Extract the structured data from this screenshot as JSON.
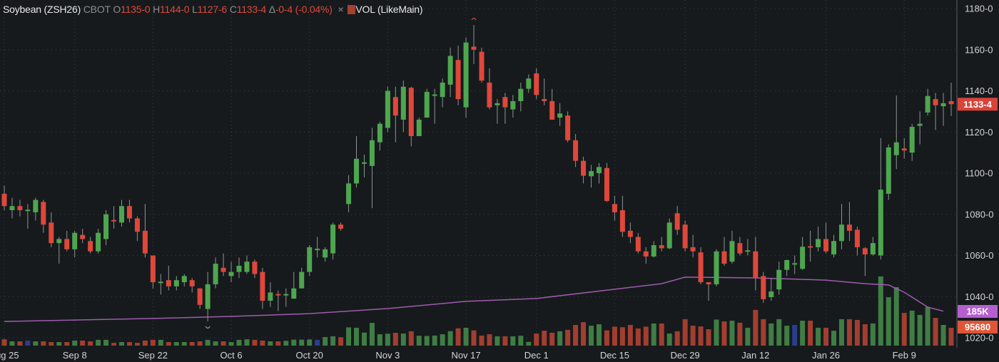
{
  "legend": {
    "name": "Soybean (ZSH26)",
    "exchange": "CBOT",
    "o_label": "O",
    "o_value": "1135-0",
    "h_label": "H",
    "h_value": "1144-0",
    "l_label": "L",
    "l_value": "1127-6",
    "c_label": "C",
    "c_value": "1133-4",
    "delta_label": "Δ",
    "delta_value": "-0-4 (-0.04%)",
    "close_icon": "×",
    "volume_label": "VOL (LikeMain)"
  },
  "price_tag": "1133-4",
  "line_tag": "185K",
  "volume_tag": "95680",
  "colors": {
    "up": "#4ea64f",
    "down": "#e0473b",
    "vol_up": "#3f7d45",
    "vol_down": "#a23e30",
    "vol_flat": "#2b3d8f",
    "line": "#a05bb0",
    "line_tag": "#b55fcf",
    "volume_tag": "#e05535",
    "price_tag": "#d8433a"
  },
  "chart_data": {
    "type": "candlestick",
    "title": "",
    "ylim": [
      1016,
      1183
    ],
    "y_ticks": [
      1180,
      1160,
      1140,
      1120,
      1100,
      1080,
      1060,
      1040,
      1020
    ],
    "y_tick_labels": [
      "1180-0",
      "1160-0",
      "1140-0",
      "1120-0",
      "1100-0",
      "1080-0",
      "1060-0",
      "1040-0",
      "1020-0"
    ],
    "x_tick_index": [
      0,
      9,
      19,
      29,
      39,
      49,
      59,
      68,
      78,
      87,
      96,
      105,
      115
    ],
    "x_tick_labels": [
      "Aug 25",
      "Sep 8",
      "Sep 22",
      "Oct 6",
      "Oct 20",
      "Nov 3",
      "Nov 17",
      "Dec 1",
      "Dec 15",
      "Dec 29",
      "Jan 12",
      "Jan 26",
      "Feb 9"
    ],
    "grid": true,
    "ohlc": [
      [
        1090,
        1094,
        1082,
        1084
      ],
      [
        1082,
        1088,
        1078,
        1084
      ],
      [
        1084,
        1087,
        1079,
        1082
      ],
      [
        1082,
        1085,
        1073,
        1082.25
      ],
      [
        1081,
        1088,
        1077,
        1087
      ],
      [
        1086,
        1087,
        1071,
        1075
      ],
      [
        1076,
        1081,
        1064,
        1066
      ],
      [
        1066,
        1069,
        1056,
        1068
      ],
      [
        1068,
        1072,
        1062,
        1063
      ],
      [
        1063,
        1072,
        1059,
        1071
      ],
      [
        1070,
        1073,
        1066,
        1068
      ],
      [
        1067,
        1069,
        1061,
        1062
      ],
      [
        1062,
        1073,
        1061,
        1071
      ],
      [
        1068,
        1082,
        1065,
        1080
      ],
      [
        1077.25,
        1084,
        1073,
        1077
      ],
      [
        1076,
        1087,
        1074,
        1084
      ],
      [
        1084,
        1087,
        1076,
        1078
      ],
      [
        1078,
        1079,
        1067,
        1071.5
      ],
      [
        1072,
        1085,
        1059,
        1061
      ],
      [
        1060,
        1060,
        1044,
        1047
      ],
      [
        1047,
        1051,
        1041,
        1047.25
      ],
      [
        1048,
        1055,
        1043,
        1045
      ],
      [
        1045,
        1050,
        1043,
        1048
      ],
      [
        1047,
        1051,
        1045,
        1050
      ],
      [
        1048,
        1049,
        1042,
        1045
      ],
      [
        1044,
        1044,
        1034,
        1036
      ],
      [
        1034,
        1052,
        1028,
        1046
      ],
      [
        1046,
        1059,
        1044,
        1056
      ],
      [
        1054,
        1061,
        1050,
        1052
      ],
      [
        1050,
        1057,
        1047,
        1052
      ],
      [
        1052,
        1059,
        1049,
        1055
      ],
      [
        1052,
        1060,
        1051,
        1057
      ],
      [
        1057,
        1058,
        1049,
        1051
      ],
      [
        1052,
        1054,
        1034,
        1038
      ],
      [
        1038,
        1047,
        1035,
        1042
      ],
      [
        1041.25,
        1043,
        1033,
        1041
      ],
      [
        1041,
        1044,
        1035,
        1041.25
      ],
      [
        1039,
        1052,
        1039,
        1044
      ],
      [
        1044,
        1054,
        1044,
        1052
      ],
      [
        1052,
        1065,
        1050,
        1064
      ],
      [
        1063,
        1069,
        1059,
        1063.25
      ],
      [
        1059,
        1064,
        1057,
        1063
      ],
      [
        1061,
        1076,
        1058,
        1075
      ],
      [
        1075,
        1076,
        1072,
        1073
      ],
      [
        1085,
        1099,
        1081,
        1095
      ],
      [
        1095,
        1118,
        1093,
        1107
      ],
      [
        1105,
        1109,
        1098,
        1105.25
      ],
      [
        1103.5,
        1122,
        1083,
        1116
      ],
      [
        1115,
        1125,
        1111,
        1124
      ],
      [
        1122,
        1142,
        1120,
        1140
      ],
      [
        1137,
        1142,
        1115,
        1128
      ],
      [
        1126,
        1145,
        1120,
        1142
      ],
      [
        1141.5,
        1142,
        1113,
        1118
      ],
      [
        1118,
        1127,
        1118,
        1126
      ],
      [
        1127,
        1141,
        1127,
        1139.5
      ],
      [
        1138,
        1141,
        1124,
        1138.25
      ],
      [
        1137,
        1146,
        1132,
        1144
      ],
      [
        1143,
        1161,
        1137,
        1157
      ],
      [
        1155,
        1162,
        1133,
        1136
      ],
      [
        1132,
        1166,
        1127,
        1163.5
      ],
      [
        1161.5,
        1172,
        1153,
        1160
      ],
      [
        1159,
        1161,
        1144,
        1145
      ],
      [
        1144,
        1151,
        1131,
        1132
      ],
      [
        1133,
        1136,
        1124,
        1134
      ],
      [
        1137,
        1139,
        1124,
        1132
      ],
      [
        1131,
        1138,
        1127,
        1135
      ],
      [
        1135,
        1144,
        1130,
        1141
      ],
      [
        1141,
        1148,
        1139,
        1146
      ],
      [
        1148.5,
        1151,
        1136,
        1138
      ],
      [
        1136,
        1146,
        1133,
        1135
      ],
      [
        1135,
        1141,
        1126,
        1126
      ],
      [
        1127,
        1134,
        1123,
        1129
      ],
      [
        1128,
        1130,
        1115,
        1116
      ],
      [
        1116,
        1119,
        1103,
        1106
      ],
      [
        1106,
        1108,
        1095,
        1098.75
      ],
      [
        1098.5,
        1104,
        1093,
        1101
      ],
      [
        1100,
        1105,
        1095,
        1103
      ],
      [
        1102.5,
        1105,
        1086,
        1086.5
      ],
      [
        1085,
        1089,
        1077,
        1081
      ],
      [
        1082,
        1089,
        1069,
        1071.5
      ],
      [
        1072,
        1076,
        1066,
        1069
      ],
      [
        1069,
        1071,
        1061,
        1062
      ],
      [
        1062,
        1064,
        1056,
        1059.5
      ],
      [
        1059.5,
        1067,
        1059,
        1065
      ],
      [
        1065,
        1069,
        1062,
        1063.5
      ],
      [
        1063.5,
        1078,
        1063,
        1076
      ],
      [
        1080.5,
        1084,
        1070,
        1072.5
      ],
      [
        1075,
        1077,
        1062,
        1063.5
      ],
      [
        1064,
        1070,
        1059,
        1062
      ],
      [
        1061.5,
        1064,
        1046,
        1047
      ],
      [
        1047,
        1047,
        1038,
        1046
      ],
      [
        1046,
        1063,
        1045,
        1062
      ],
      [
        1062,
        1069,
        1055,
        1056
      ],
      [
        1057,
        1072,
        1056,
        1067
      ],
      [
        1066,
        1069,
        1060,
        1061
      ],
      [
        1062,
        1068,
        1060,
        1062.5
      ],
      [
        1062,
        1069,
        1043,
        1049
      ],
      [
        1050,
        1052,
        1037,
        1038.75
      ],
      [
        1039.75,
        1049,
        1038,
        1042.5
      ],
      [
        1043.5,
        1057,
        1041,
        1053
      ],
      [
        1053,
        1058,
        1050,
        1057.75
      ],
      [
        1056,
        1060,
        1051,
        1056.25
      ],
      [
        1053.5,
        1069,
        1053,
        1064.25
      ],
      [
        1064.5,
        1072,
        1057,
        1064.25
      ],
      [
        1064,
        1074,
        1062,
        1068
      ],
      [
        1068,
        1076,
        1061,
        1062
      ],
      [
        1060.5,
        1070,
        1059,
        1067
      ],
      [
        1067,
        1085,
        1063,
        1075
      ],
      [
        1075,
        1086,
        1067,
        1072
      ],
      [
        1072.5,
        1074,
        1060,
        1064
      ],
      [
        1063.5,
        1064,
        1050,
        1060.5
      ],
      [
        1060.5,
        1069,
        1060,
        1066
      ],
      [
        1060,
        1117,
        1058,
        1092
      ],
      [
        1090,
        1114,
        1087,
        1112.5
      ],
      [
        1108.75,
        1137.75,
        1102,
        1115
      ],
      [
        1112,
        1117,
        1107,
        1111
      ],
      [
        1110,
        1124,
        1106,
        1122.5
      ],
      [
        1123,
        1130,
        1114,
        1124
      ],
      [
        1129.5,
        1141,
        1128,
        1137.5
      ],
      [
        1136,
        1139,
        1121,
        1133
      ],
      [
        1132.5,
        1139,
        1123,
        1134
      ],
      [
        1135,
        1144,
        1127.75,
        1133.5
      ]
    ],
    "volume_k": [
      34,
      23,
      23,
      27,
      23,
      23,
      19,
      19,
      19,
      27,
      27,
      23,
      31,
      31,
      15,
      19,
      19,
      15,
      27,
      31,
      31,
      19,
      19,
      19,
      19,
      23,
      31,
      23,
      23,
      19,
      31,
      34,
      31,
      27,
      23,
      23,
      26,
      32,
      32,
      33,
      31,
      46,
      50,
      45,
      98,
      96,
      70,
      122,
      61,
      64,
      69,
      65,
      77,
      53,
      52,
      54,
      61,
      78,
      93,
      96,
      82,
      54,
      61,
      50,
      50,
      50,
      53,
      20,
      65,
      80,
      69,
      77,
      85,
      111,
      126,
      107,
      115,
      82,
      102,
      99,
      111,
      92,
      102,
      119,
      119,
      65,
      77,
      142,
      107,
      103,
      88,
      140,
      130,
      134,
      123,
      96,
      192,
      142,
      119,
      142,
      107,
      111,
      134,
      134,
      96,
      96,
      80,
      142,
      142,
      138,
      115,
      119,
      372,
      260,
      314,
      176,
      188,
      165,
      207,
      149,
      111,
      95.68
    ],
    "volume_flat_indices": [
      3,
      40,
      101
    ],
    "line_points_k": [
      [
        0,
        130
      ],
      [
        19,
        146
      ],
      [
        29,
        157
      ],
      [
        39,
        172
      ],
      [
        49,
        199
      ],
      [
        59,
        238
      ],
      [
        68,
        253
      ],
      [
        78,
        303
      ],
      [
        84,
        333
      ],
      [
        87,
        368
      ],
      [
        96,
        364
      ],
      [
        105,
        352
      ],
      [
        110,
        333
      ],
      [
        113,
        326
      ],
      [
        115,
        287
      ],
      [
        118,
        207
      ],
      [
        120,
        185
      ]
    ],
    "high_marker_index": 60,
    "low_marker_index": 26
  }
}
